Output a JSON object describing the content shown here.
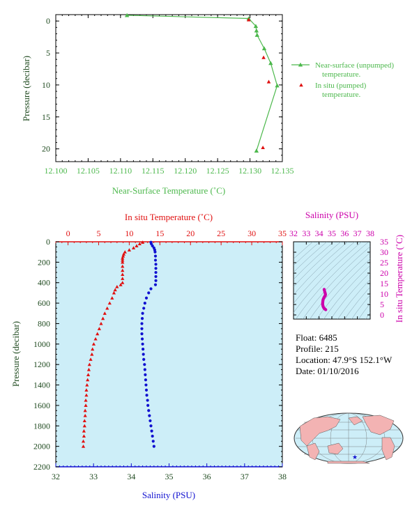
{
  "colors": {
    "green": "#4cb84c",
    "red": "#e01010",
    "blue": "#1010d0",
    "magenta": "#cc00aa",
    "dark_green": "#1f4a1f",
    "panel_bg": "#cdeef8",
    "land": "#f3b3b3",
    "ocean": "#cdeef8"
  },
  "float_info": {
    "float_label": "Float:",
    "float_value": "6485",
    "profile_label": "Profile:",
    "profile_value": "215",
    "location_label": "Location:",
    "location_value": "47.9°S  152.1°W",
    "date_label": "Date:",
    "date_value": "01/10/2016"
  },
  "chart_data": [
    {
      "type": "line",
      "xlabel": "Near-Surface Temperature (˚C)",
      "ylabel": "Pressure (decibar)",
      "xlim": [
        12.1,
        12.135
      ],
      "ylim": [
        22,
        -1
      ],
      "x_ticks": [
        "12.100",
        "12.105",
        "12.110",
        "12.115",
        "12.120",
        "12.125",
        "12.130",
        "12.135"
      ],
      "y_ticks": [
        "0",
        "5",
        "10",
        "15",
        "20"
      ],
      "legend": {
        "placement": "right",
        "entries": [
          "Near-surface (unpumped)",
          "temperature.",
          "In situ (pumped)",
          "temperature."
        ]
      },
      "series": [
        {
          "name": "Near-surface (unpumped) temperature.",
          "marker": "triangle",
          "x": [
            12.111,
            12.1298,
            12.1309,
            12.131,
            12.1311,
            12.1322,
            12.1332,
            12.1342,
            12.131
          ],
          "y": [
            -0.9,
            -0.4,
            0.8,
            1.5,
            2.2,
            4.3,
            6.6,
            10.1,
            20.3
          ]
        },
        {
          "name": "In situ (pumped) temperature.",
          "marker": "triangle",
          "x": [
            12.1298,
            12.1321,
            12.1329,
            12.132
          ],
          "y": [
            -0.2,
            5.7,
            9.5,
            19.8
          ]
        }
      ]
    },
    {
      "type": "scatter",
      "x_top_label": "In situ Temperature (˚C)",
      "x_bottom_label": "Salinity (PSU)",
      "ylabel": "Pressure (decibar)",
      "x_top_lim": [
        -2,
        35
      ],
      "x_bottom_lim": [
        32,
        38
      ],
      "ylim": [
        2200,
        0
      ],
      "x_top_ticks": [
        "0",
        "5",
        "10",
        "15",
        "20",
        "25",
        "30",
        "35"
      ],
      "x_bottom_ticks": [
        "32",
        "33",
        "34",
        "35",
        "36",
        "37",
        "38"
      ],
      "y_ticks": [
        "0",
        "200",
        "400",
        "600",
        "800",
        "1000",
        "1200",
        "1400",
        "1600",
        "1800",
        "2000",
        "2200"
      ],
      "temperature_series": {
        "pressure": [
          5,
          20,
          40,
          60,
          80,
          100,
          120,
          140,
          160,
          180,
          200,
          240,
          280,
          320,
          360,
          400,
          420,
          440,
          470,
          500,
          550,
          600,
          650,
          700,
          750,
          800,
          850,
          900,
          950,
          1000,
          1050,
          1100,
          1150,
          1200,
          1250,
          1300,
          1350,
          1400,
          1450,
          1500,
          1550,
          1600,
          1650,
          1700,
          1750,
          1800,
          1850,
          1900,
          1950,
          2000
        ],
        "temperature": [
          12.2,
          11.7,
          11.2,
          10.7,
          10.0,
          9.3,
          9.1,
          9.0,
          8.9,
          8.9,
          8.9,
          8.9,
          8.9,
          8.9,
          8.9,
          8.9,
          8.6,
          8.0,
          7.7,
          7.5,
          7.2,
          6.8,
          6.4,
          6.0,
          5.7,
          5.4,
          5.1,
          4.8,
          4.5,
          4.2,
          4.0,
          3.9,
          3.7,
          3.5,
          3.4,
          3.3,
          3.2,
          3.1,
          3.0,
          3.0,
          2.9,
          2.9,
          2.8,
          2.8,
          2.7,
          2.7,
          2.6,
          2.6,
          2.5,
          2.5
        ]
      },
      "salinity_series": {
        "pressure": [
          5,
          20,
          40,
          60,
          80,
          100,
          140,
          180,
          220,
          260,
          300,
          340,
          380,
          420,
          460,
          500,
          550,
          600,
          650,
          700,
          750,
          800,
          850,
          900,
          950,
          1000,
          1050,
          1100,
          1150,
          1200,
          1250,
          1300,
          1350,
          1400,
          1450,
          1500,
          1550,
          1600,
          1650,
          1700,
          1750,
          1800,
          1850,
          1900,
          1950,
          2000
        ],
        "salinity": [
          34.52,
          34.53,
          34.56,
          34.6,
          34.62,
          34.63,
          34.64,
          34.64,
          34.65,
          34.65,
          34.65,
          34.65,
          34.65,
          34.64,
          34.52,
          34.46,
          34.4,
          34.36,
          34.33,
          34.3,
          34.29,
          34.28,
          34.28,
          34.28,
          34.29,
          34.3,
          34.31,
          34.32,
          34.33,
          34.35,
          34.36,
          34.37,
          34.38,
          34.39,
          34.4,
          34.41,
          34.43,
          34.44,
          34.46,
          34.48,
          34.5,
          34.52,
          34.54,
          34.56,
          34.58,
          34.6
        ]
      }
    },
    {
      "type": "scatter",
      "xlabel": "Salinity (PSU)",
      "ylabel": "In situ Temperature (˚C)",
      "xlim": [
        32,
        38
      ],
      "ylim": [
        -2,
        35
      ],
      "x_ticks": [
        "32",
        "33",
        "34",
        "35",
        "36",
        "37",
        "38"
      ],
      "y_ticks": [
        "0",
        "5",
        "10",
        "15",
        "20",
        "25",
        "30",
        "35"
      ],
      "points": {
        "salinity": [
          34.4,
          34.42,
          34.45,
          34.48,
          34.5,
          34.48,
          34.44,
          34.4,
          34.36,
          34.32,
          34.3,
          34.29,
          34.28,
          34.28,
          34.3,
          34.32,
          34.36,
          34.4,
          34.46,
          34.52
        ],
        "temperature": [
          12.2,
          11.7,
          11.0,
          10.4,
          9.8,
          9.2,
          8.9,
          8.5,
          8.0,
          7.4,
          6.8,
          6.2,
          5.6,
          5.0,
          4.5,
          4.0,
          3.5,
          3.1,
          2.8,
          2.5
        ]
      }
    }
  ]
}
